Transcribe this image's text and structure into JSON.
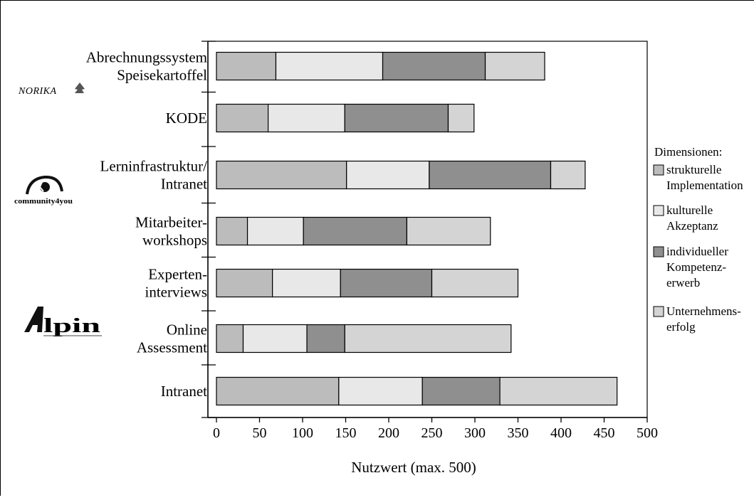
{
  "chart_data": {
    "type": "bar",
    "orientation": "horizontal",
    "stacked": true,
    "xlabel": "Nutzwert (max. 500)",
    "xlim": [
      0,
      500
    ],
    "xticks": [
      0,
      50,
      100,
      150,
      200,
      250,
      300,
      350,
      400,
      450,
      500
    ],
    "categories": [
      [
        "Abrechnungssystem",
        "Speisekartoffel"
      ],
      [
        "KODE"
      ],
      [
        "Lerninfrastruktur/",
        "Intranet"
      ],
      [
        "Mitarbeiter-",
        "workshops"
      ],
      [
        "Experten-",
        "interviews"
      ],
      [
        "Online",
        "Assessment"
      ],
      [
        "Intranet"
      ]
    ],
    "series": [
      {
        "name": "strukturelle Implementation",
        "name_lines": [
          "strukturelle",
          "Implementation"
        ],
        "color": "#bcbcbc",
        "values": [
          69,
          60,
          151,
          36,
          65,
          31,
          142
        ]
      },
      {
        "name": "kulturelle Akzeptanz",
        "name_lines": [
          "kulturelle",
          "Akzeptanz"
        ],
        "color": "#e8e8e8",
        "values": [
          124,
          89,
          96,
          65,
          79,
          74,
          97
        ]
      },
      {
        "name": "individueller Kompetenzerwerb",
        "name_lines": [
          "individueller",
          "Kompetenz-",
          "erwerb"
        ],
        "color": "#8f8f8f",
        "values": [
          119,
          120,
          141,
          120,
          106,
          44,
          90
        ]
      },
      {
        "name": "Unternehmenserfolg",
        "name_lines": [
          "Unternehmens-",
          "erfolg"
        ],
        "color": "#d4d4d4",
        "values": [
          69,
          30,
          40,
          97,
          100,
          193,
          136
        ]
      }
    ],
    "legend": {
      "title": "Dimensionen:",
      "position": "right"
    },
    "grid": false
  },
  "logos": [
    {
      "text": "NORIKA",
      "group": 0
    },
    {
      "text": "community4you",
      "group": 2
    },
    {
      "text": "Alpin",
      "group": 5
    }
  ]
}
